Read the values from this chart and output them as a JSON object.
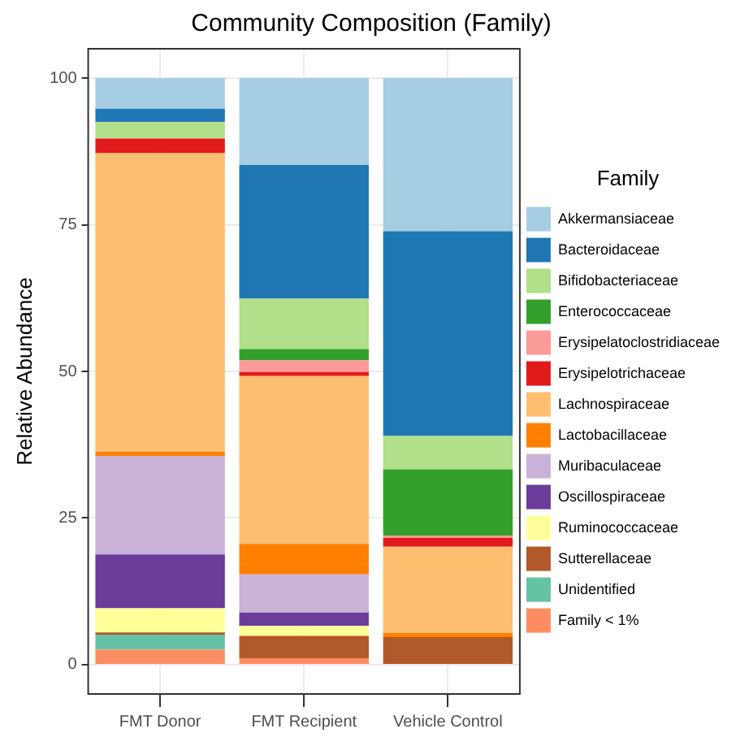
{
  "chart_data": {
    "type": "bar",
    "title": "Community Composition (Family)",
    "ylabel": "Relative Abundance",
    "legend_title": "Family",
    "legend": "right",
    "stacked": true,
    "grid": true,
    "categories": [
      "FMT Donor",
      "FMT Recipient",
      "Vehicle Control"
    ],
    "ylim": [
      -5,
      105
    ],
    "yticks": [
      0,
      25,
      50,
      75,
      100
    ],
    "series": [
      {
        "name": "Family < 1%",
        "color": "#fc8d62",
        "values": [
          2.6,
          1.1,
          0
        ]
      },
      {
        "name": "Unidentified",
        "color": "#66c2a5",
        "values": [
          2.5,
          0,
          0
        ]
      },
      {
        "name": "Sutterellaceae",
        "color": "#b15928",
        "values": [
          0.4,
          3.8,
          4.7
        ]
      },
      {
        "name": "Ruminococcaceae",
        "color": "#ffff99",
        "values": [
          4.1,
          1.7,
          0
        ]
      },
      {
        "name": "Oscillospiraceae",
        "color": "#6a3d9a",
        "values": [
          9.2,
          2.3,
          0
        ]
      },
      {
        "name": "Muribaculaceae",
        "color": "#cab2d6",
        "values": [
          16.8,
          6.5,
          0
        ]
      },
      {
        "name": "Lactobacillaceae",
        "color": "#ff7f00",
        "values": [
          0.7,
          5.2,
          0.7
        ]
      },
      {
        "name": "Lachnospiraceae",
        "color": "#fdbf6f",
        "values": [
          50.9,
          28.6,
          14.7
        ]
      },
      {
        "name": "Erysipelotrichaceae",
        "color": "#e31a1c",
        "values": [
          2.5,
          0.7,
          1.5
        ]
      },
      {
        "name": "Erysipelatoclostridiaceae",
        "color": "#fb9a99",
        "values": [
          0,
          2.0,
          0.4
        ]
      },
      {
        "name": "Enterococcaceae",
        "color": "#33a02c",
        "values": [
          0,
          1.9,
          11.3
        ]
      },
      {
        "name": "Bifidobacteriaceae",
        "color": "#b2df8a",
        "values": [
          2.8,
          8.6,
          5.7
        ]
      },
      {
        "name": "Bacteroidaceae",
        "color": "#1f78b4",
        "values": [
          2.3,
          22.8,
          34.9
        ]
      },
      {
        "name": "Akkermansiaceae",
        "color": "#a6cee3",
        "values": [
          5.2,
          14.8,
          26.1
        ]
      }
    ]
  }
}
